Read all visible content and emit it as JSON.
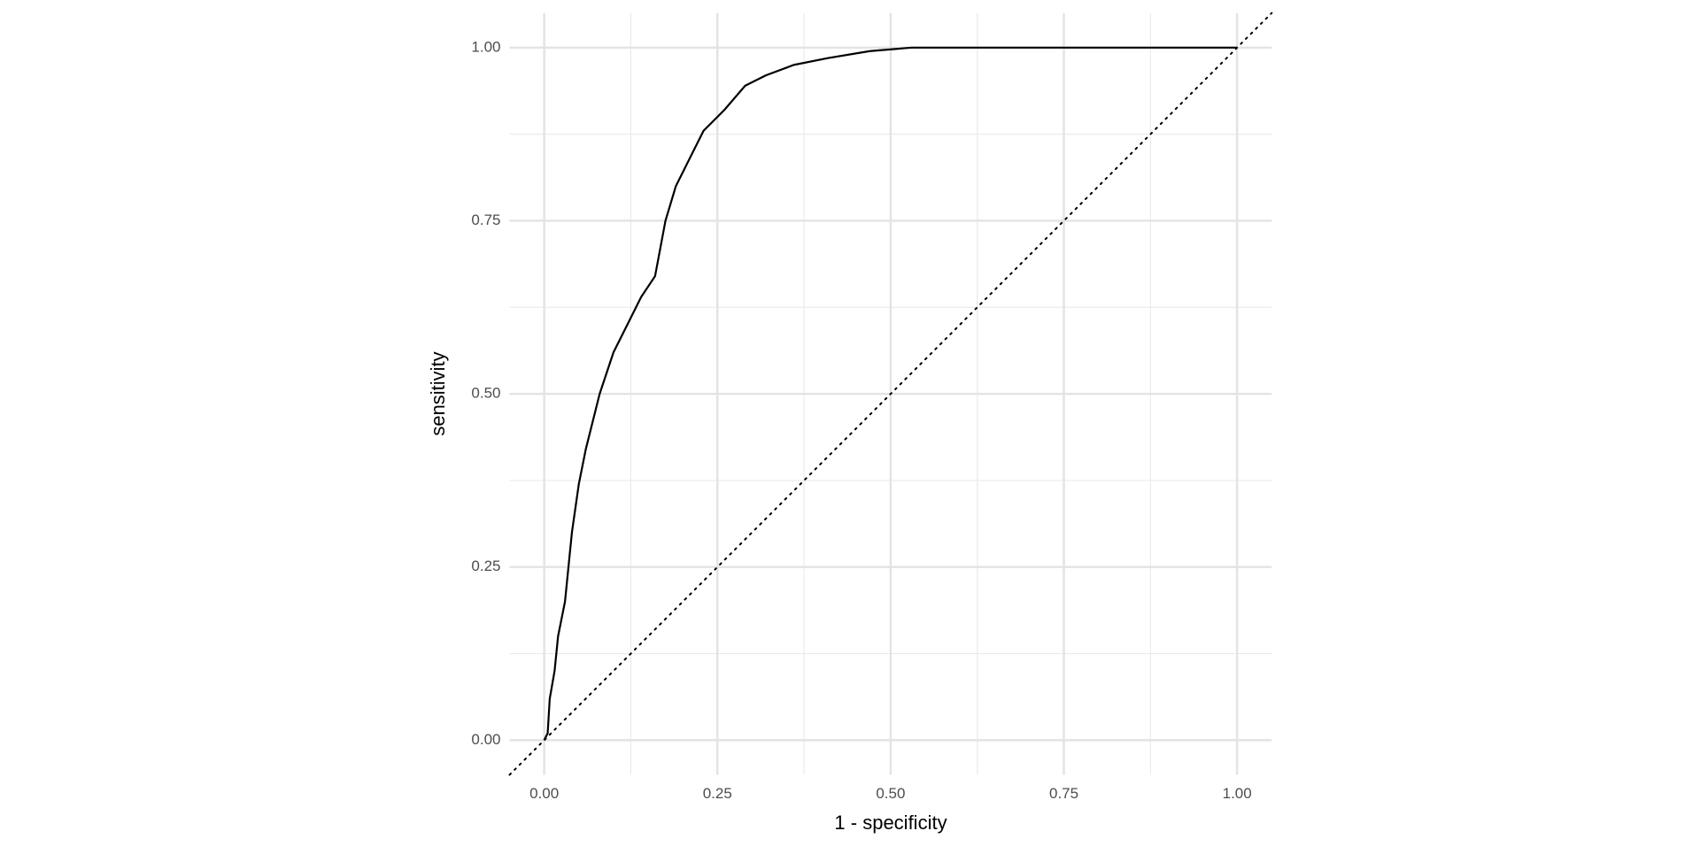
{
  "chart_data": {
    "type": "line",
    "x_label": "1 - specificity",
    "y_label": "sensitivity",
    "x": [
      0,
      0.005,
      0.008,
      0.015,
      0.02,
      0.03,
      0.04,
      0.05,
      0.06,
      0.08,
      0.1,
      0.12,
      0.14,
      0.16,
      0.175,
      0.19,
      0.21,
      0.23,
      0.26,
      0.29,
      0.32,
      0.36,
      0.41,
      0.47,
      0.53,
      0.7,
      1
    ],
    "values": [
      0,
      0.01,
      0.06,
      0.1,
      0.15,
      0.2,
      0.3,
      0.37,
      0.42,
      0.5,
      0.56,
      0.6,
      0.64,
      0.67,
      0.75,
      0.8,
      0.84,
      0.88,
      0.91,
      0.945,
      0.96,
      0.975,
      0.985,
      0.995,
      1,
      1,
      1
    ],
    "color": "#000000",
    "xlim": [
      -0.05,
      1.05
    ],
    "ylim": [
      -0.05,
      1.05
    ],
    "xticks": [
      {
        "value": 0,
        "label": "0.00"
      },
      {
        "value": 0.25,
        "label": "0.25"
      },
      {
        "value": 0.5,
        "label": "0.50"
      },
      {
        "value": 0.75,
        "label": "0.75"
      },
      {
        "value": 1,
        "label": "1.00"
      }
    ],
    "yticks": [
      {
        "value": 0,
        "label": "0.00"
      },
      {
        "value": 0.25,
        "label": "0.25"
      },
      {
        "value": 0.5,
        "label": "0.50"
      },
      {
        "value": 0.75,
        "label": "0.75"
      },
      {
        "value": 1,
        "label": "1.00"
      }
    ],
    "grid": true
  }
}
